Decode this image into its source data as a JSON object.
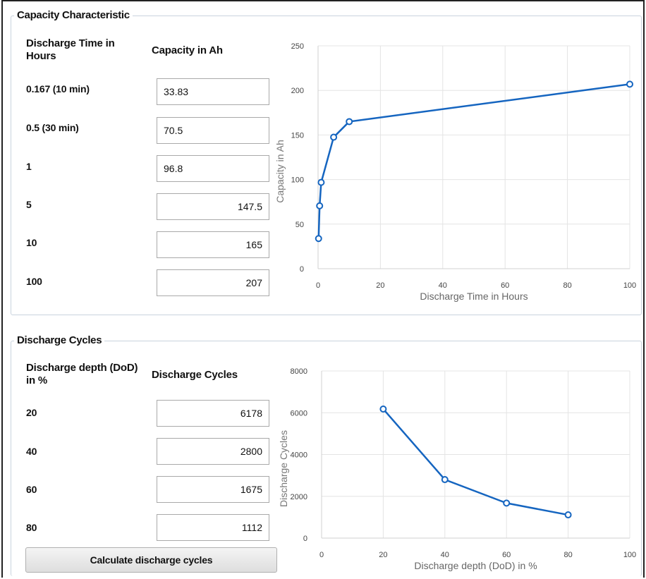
{
  "capacity": {
    "group_title": "Capacity Characteristic",
    "col1_header": "Discharge Time in Hours",
    "col2_header": "Capacity in Ah",
    "rows": [
      {
        "label": "0.167 (10 min)",
        "value": "33.83"
      },
      {
        "label": "0.5 (30 min)",
        "value": "70.5"
      },
      {
        "label": "1",
        "value": "96.8"
      },
      {
        "label": "5",
        "value": "147.5"
      },
      {
        "label": "10",
        "value": "165"
      },
      {
        "label": "100",
        "value": "207"
      }
    ]
  },
  "cycles": {
    "group_title": "Discharge Cycles",
    "col1_header": "Discharge depth (DoD) in %",
    "col2_header": "Discharge Cycles",
    "rows": [
      {
        "label": "20",
        "value": "6178"
      },
      {
        "label": "40",
        "value": "2800"
      },
      {
        "label": "60",
        "value": "1675"
      },
      {
        "label": "80",
        "value": "1112"
      }
    ],
    "button_label": "Calculate discharge cycles"
  },
  "chart_data": [
    {
      "type": "line",
      "x": [
        0.167,
        0.5,
        1,
        5,
        10,
        100
      ],
      "y": [
        33.83,
        70.5,
        96.8,
        147.5,
        165,
        207
      ],
      "xlabel": "Discharge Time in Hours",
      "ylabel": "Capacity in Ah",
      "xlim": [
        0,
        100
      ],
      "ylim": [
        0,
        250
      ],
      "xticks": [
        0,
        20,
        40,
        60,
        80,
        100
      ],
      "yticks": [
        0,
        50,
        100,
        150,
        200,
        250
      ],
      "grid": true,
      "color": "#1565c0"
    },
    {
      "type": "line",
      "x": [
        20,
        40,
        60,
        80
      ],
      "y": [
        6178,
        2800,
        1675,
        1112
      ],
      "xlabel": "Discharge depth (DoD) in %",
      "ylabel": "Discharge Cycles",
      "xlim": [
        0,
        100
      ],
      "ylim": [
        0,
        8000
      ],
      "xticks": [
        0,
        20,
        40,
        60,
        80,
        100
      ],
      "yticks": [
        0,
        2000,
        4000,
        6000,
        8000
      ],
      "grid": true,
      "color": "#1565c0"
    }
  ]
}
